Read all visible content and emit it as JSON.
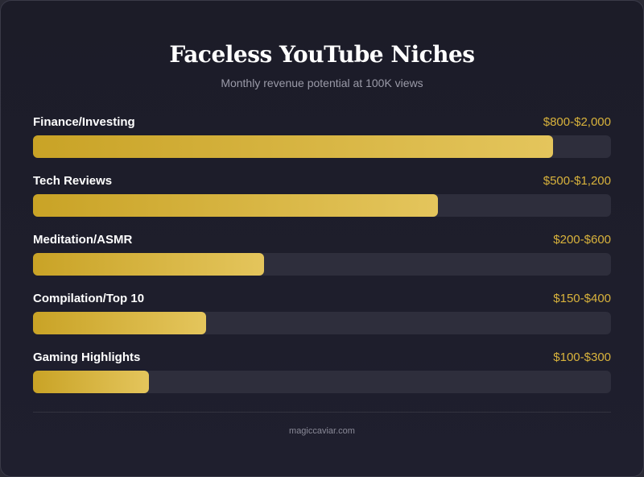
{
  "chart_data": {
    "type": "bar",
    "orientation": "horizontal",
    "title": "Faceless YouTube Niches",
    "subtitle": "Monthly revenue potential at 100K views",
    "categories": [
      "Finance/Investing",
      "Tech Reviews",
      "Meditation/ASMR",
      "Compilation/Top 10",
      "Gaming Highlights"
    ],
    "value_labels": [
      "$800-$2,000",
      "$500-$1,200",
      "$200-$600",
      "$150-$400",
      "$100-$300"
    ],
    "values": [
      0.9,
      0.7,
      0.4,
      0.3,
      0.2
    ],
    "value_scale": "fraction of bar track filled",
    "bar_color": "#d4b03e",
    "track_color": "#2e2e3c",
    "grid": false,
    "legend": "none"
  },
  "footer": {
    "text": "magiccaviar.com"
  },
  "colors": {
    "background": "#1c1c28",
    "value_text": "#d9b33c",
    "subtitle_text": "#9a9aa8"
  }
}
